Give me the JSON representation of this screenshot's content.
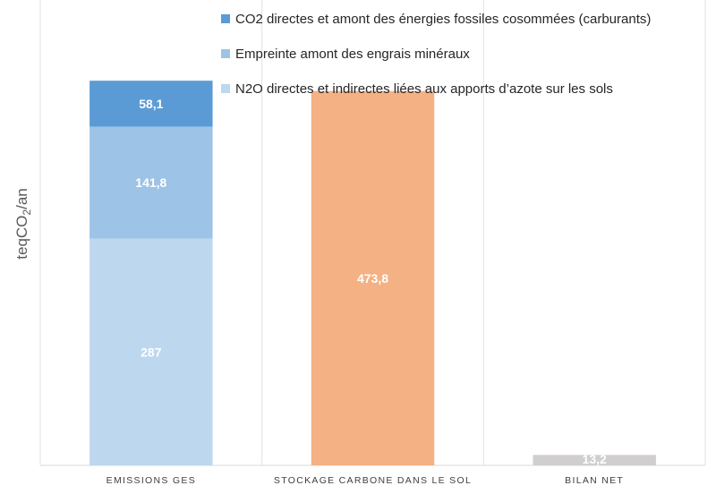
{
  "chart_data": {
    "type": "bar",
    "stacked": true,
    "ylabel_main": "teqCO",
    "ylabel_sub": "2",
    "ylabel_tail": "/an",
    "categories": [
      "EMISSIONS GES",
      "STOCKAGE CARBONE DANS LE SOL",
      "BILAN NET"
    ],
    "series": [
      {
        "name": "N2O directes et indirectes liées aux apports d’azote sur les sols",
        "color": "#bdd7ee",
        "values": [
          287,
          null,
          null
        ],
        "labels": [
          "287",
          "",
          ""
        ]
      },
      {
        "name": "Empreinte amont des engrais minéraux",
        "color": "#9dc3e6",
        "values": [
          141.8,
          null,
          null
        ],
        "labels": [
          "141,8",
          "",
          ""
        ]
      },
      {
        "name": "CO2 directes et amont des énergies fossiles cosommées (carburants)",
        "color": "#5b9bd5",
        "values": [
          58.1,
          null,
          null
        ],
        "labels": [
          "58,1",
          "",
          ""
        ]
      },
      {
        "name": "Stockage carbone",
        "color": "#f4b183",
        "values": [
          null,
          473.8,
          null
        ],
        "labels": [
          "",
          "473,8",
          ""
        ]
      },
      {
        "name": "Bilan net",
        "color": "#d0cece",
        "values": [
          null,
          null,
          13.2
        ],
        "labels": [
          "",
          "",
          "13,2"
        ]
      }
    ],
    "legend": [
      {
        "label": "CO2 directes et amont des énergies fossiles cosommées (carburants)",
        "color": "#5b9bd5"
      },
      {
        "label": "Empreinte amont des engrais minéraux",
        "color": "#9dc3e6"
      },
      {
        "label": "N2O directes et indirectes liées aux apports d’azote sur les sols",
        "color": "#bdd7ee"
      }
    ],
    "legend_position": "top-right",
    "ylim": [
      0,
      580
    ],
    "gridlines": "vertical category separators"
  }
}
